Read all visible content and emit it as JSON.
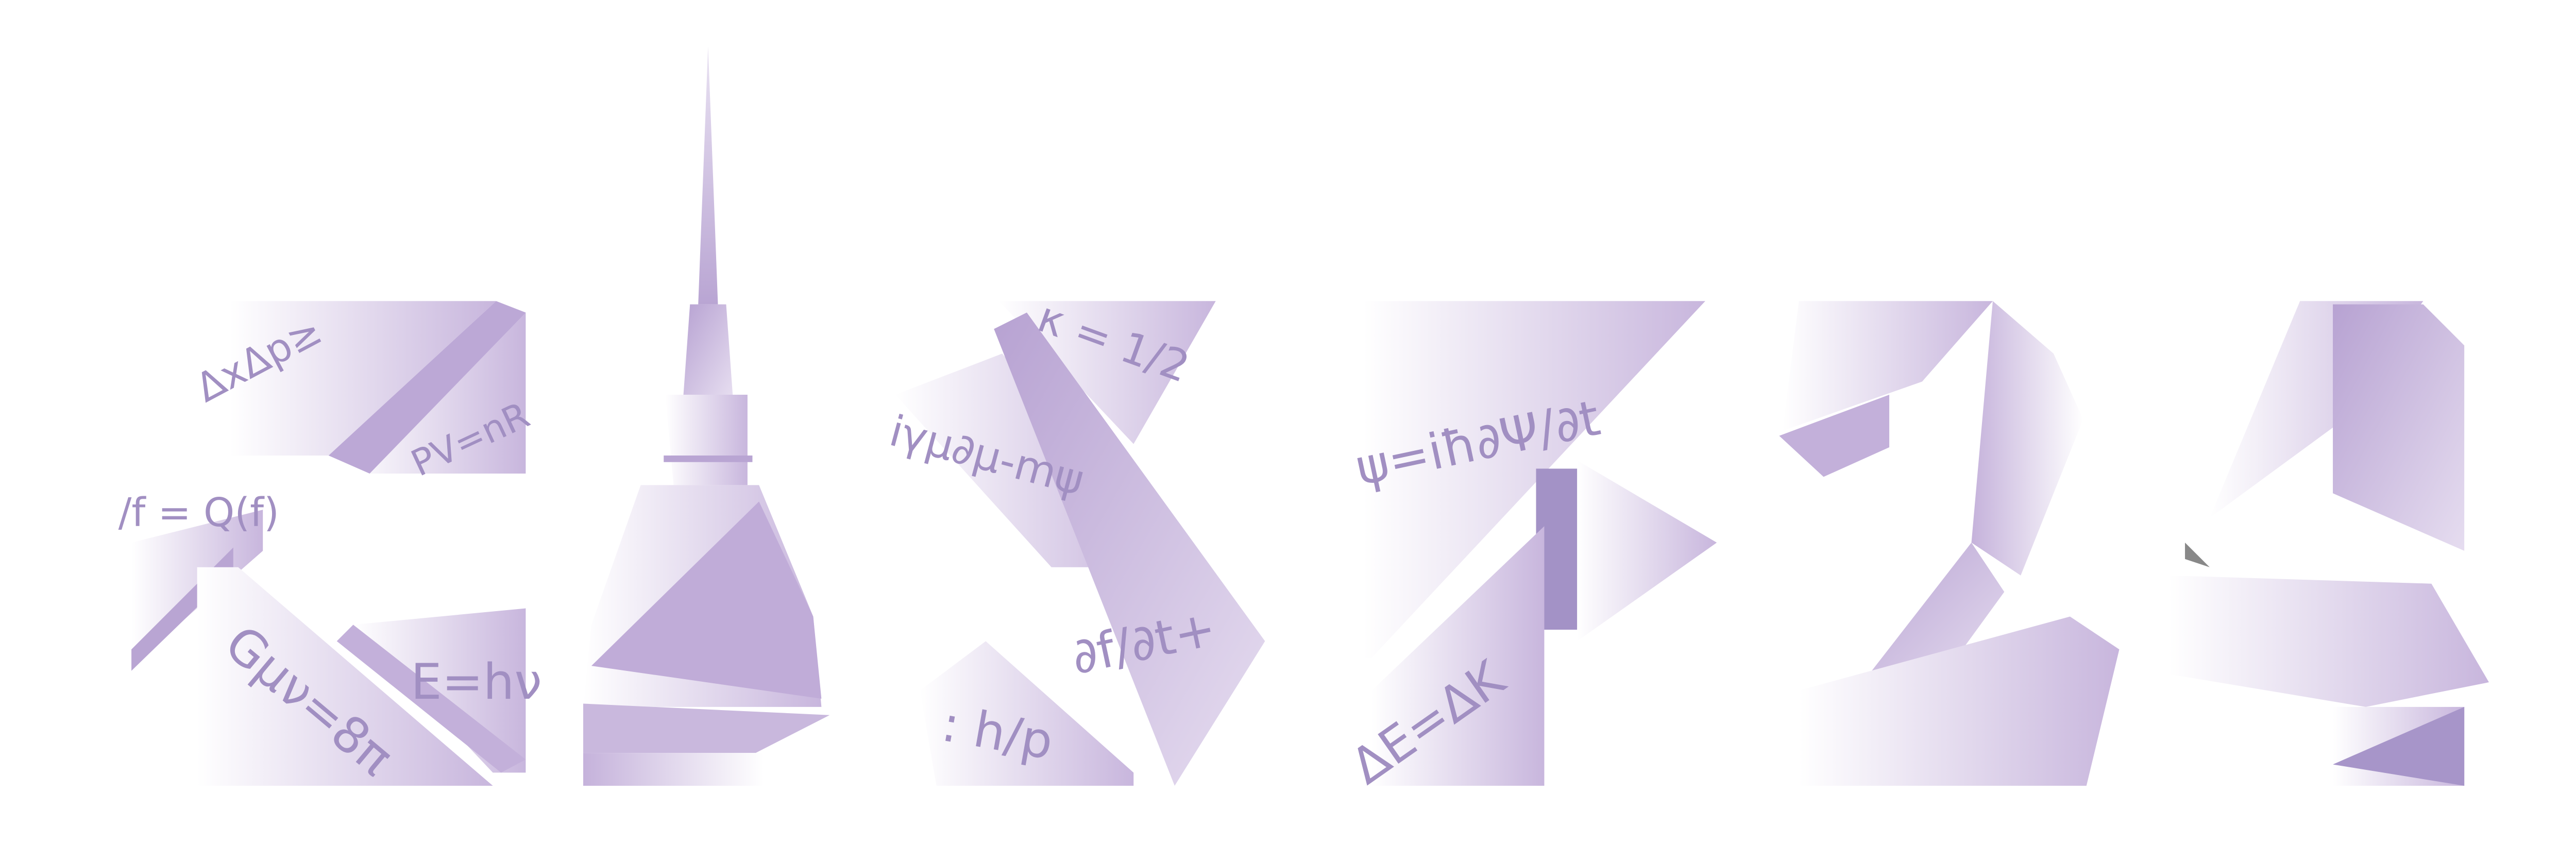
{
  "formulas": {
    "c_top": "ΔxΔp≥",
    "c_right": "PV=nR",
    "c_left": "/f = Q(f)",
    "c_bottom": "Gμν=8π",
    "c_lower_right": "E=hν",
    "s_top": "κ = 1/2",
    "s_middle": "iγμ∂μ-mψ",
    "s_right": "∂f/∂t+",
    "s_bottom": ": h/p",
    "f_top": "ψ=iħ∂Ψ/∂t",
    "f_bottom": "ΔE=ΔK"
  }
}
